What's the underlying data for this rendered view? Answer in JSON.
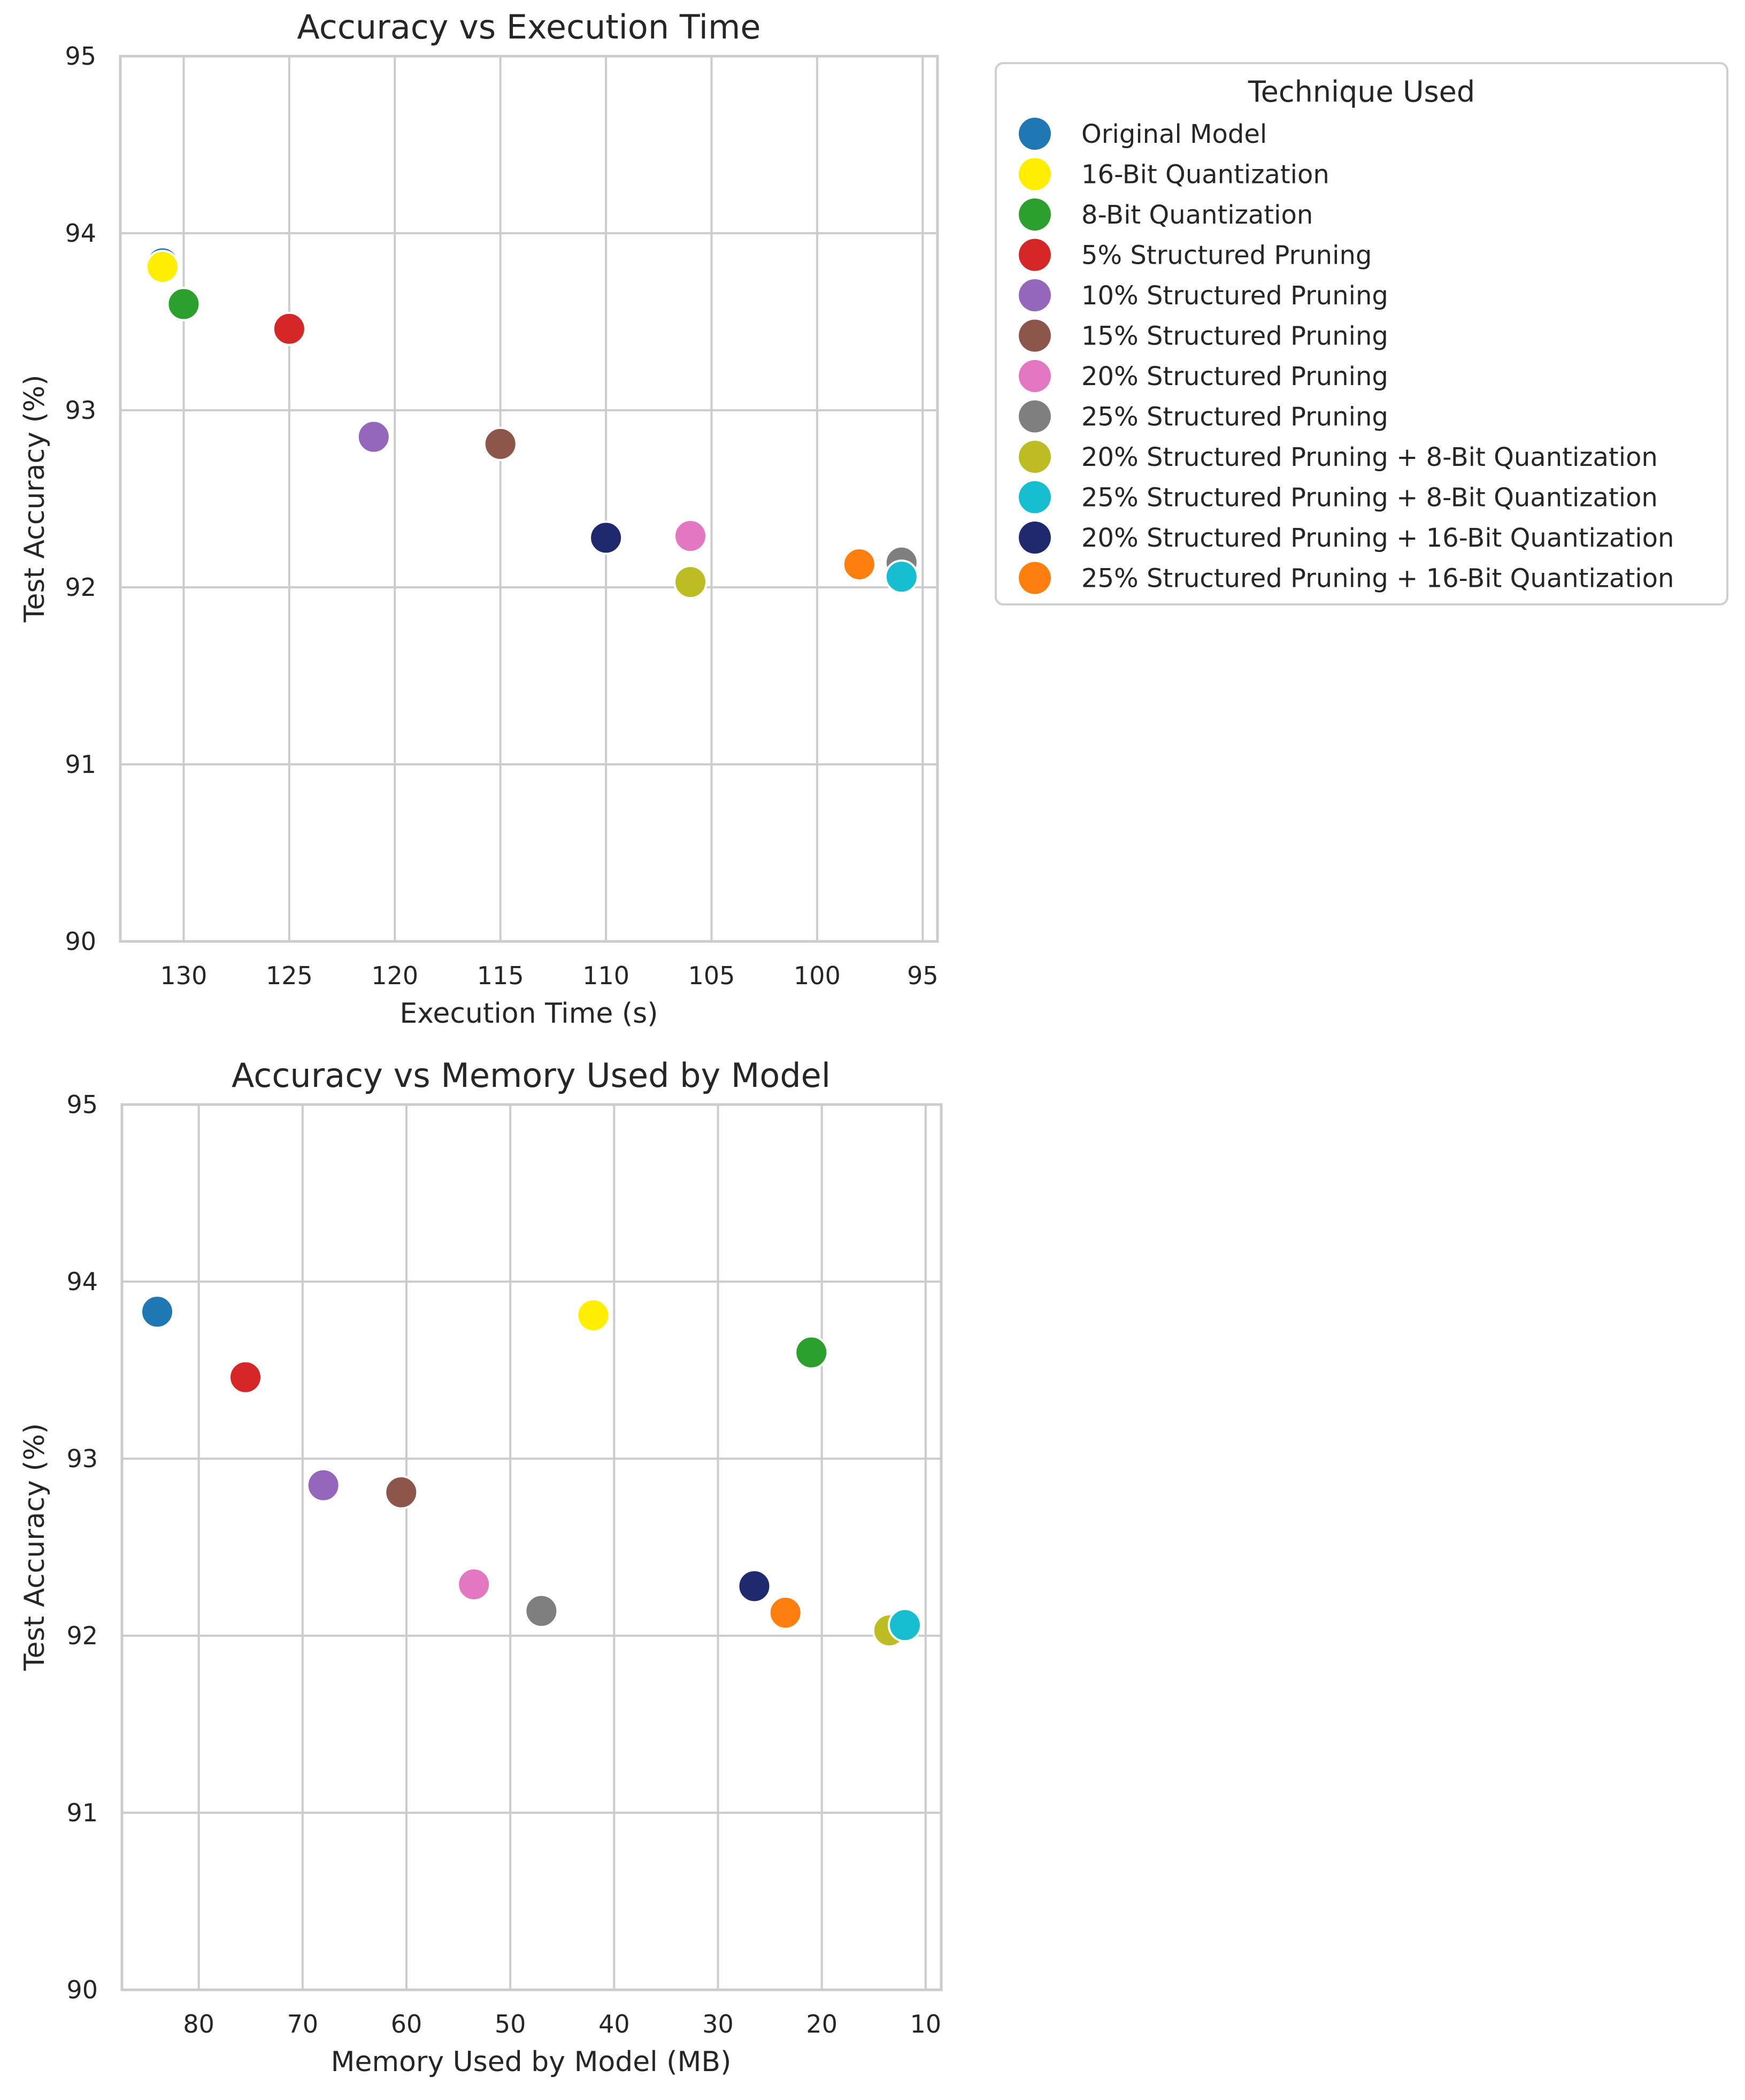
{
  "legend": {
    "title": "Technique Used",
    "entries": [
      {
        "label": "Original Model",
        "color": "#1f77b4"
      },
      {
        "label": "16-Bit Quantization",
        "color": "#ffee00"
      },
      {
        "label": "8-Bit Quantization",
        "color": "#2ca02c"
      },
      {
        "label": "5% Structured Pruning",
        "color": "#d62728"
      },
      {
        "label": "10% Structured Pruning",
        "color": "#9467bd"
      },
      {
        "label": "15% Structured Pruning",
        "color": "#8c564b"
      },
      {
        "label": "20% Structured Pruning",
        "color": "#e377c2"
      },
      {
        "label": "25% Structured Pruning",
        "color": "#7f7f7f"
      },
      {
        "label": "20% Structured Pruning + 8-Bit Quantization",
        "color": "#bcbd22"
      },
      {
        "label": "25% Structured Pruning + 8-Bit Quantization",
        "color": "#17becf"
      },
      {
        "label": "20% Structured Pruning + 16-Bit Quantization",
        "color": "#1f2a6e"
      },
      {
        "label": "25% Structured Pruning + 16-Bit Quantization",
        "color": "#ff7f0e"
      }
    ]
  },
  "chart_data": [
    {
      "type": "scatter",
      "title": "Accuracy vs Execution Time",
      "xlabel": "Execution Time (s)",
      "ylabel": "Test Accuracy (%)",
      "x_inverted": true,
      "xlim": [
        133,
        94.3
      ],
      "ylim": [
        90,
        95
      ],
      "xticks": [
        130,
        125,
        120,
        115,
        110,
        105,
        100,
        95
      ],
      "yticks": [
        90,
        91,
        92,
        93,
        94,
        95
      ],
      "grid": true,
      "points": [
        {
          "label": "Original Model",
          "x": 131,
          "y": 93.83
        },
        {
          "label": "16-Bit Quantization",
          "x": 131,
          "y": 93.81
        },
        {
          "label": "8-Bit Quantization",
          "x": 130,
          "y": 93.6
        },
        {
          "label": "5% Structured Pruning",
          "x": 125,
          "y": 93.46
        },
        {
          "label": "10% Structured Pruning",
          "x": 121,
          "y": 92.85
        },
        {
          "label": "15% Structured Pruning",
          "x": 115,
          "y": 92.81
        },
        {
          "label": "20% Structured Pruning",
          "x": 106,
          "y": 92.29
        },
        {
          "label": "25% Structured Pruning",
          "x": 96,
          "y": 92.14
        },
        {
          "label": "20% Structured Pruning + 8-Bit Quantization",
          "x": 106,
          "y": 92.03
        },
        {
          "label": "25% Structured Pruning + 8-Bit Quantization",
          "x": 96,
          "y": 92.06
        },
        {
          "label": "20% Structured Pruning + 16-Bit Quantization",
          "x": 110,
          "y": 92.28
        },
        {
          "label": "25% Structured Pruning + 16-Bit Quantization",
          "x": 98,
          "y": 92.13
        }
      ]
    },
    {
      "type": "scatter",
      "title": "Accuracy vs Memory Used by Model",
      "xlabel": "Memory Used by Model (MB)",
      "ylabel": "Test Accuracy (%)",
      "x_inverted": true,
      "xlim": [
        87.4,
        8.5
      ],
      "ylim": [
        90,
        95
      ],
      "xticks": [
        80,
        70,
        60,
        50,
        40,
        30,
        20,
        10
      ],
      "yticks": [
        90,
        91,
        92,
        93,
        94,
        95
      ],
      "grid": true,
      "points": [
        {
          "label": "Original Model",
          "x": 84,
          "y": 93.83
        },
        {
          "label": "16-Bit Quantization",
          "x": 42,
          "y": 93.81
        },
        {
          "label": "8-Bit Quantization",
          "x": 21,
          "y": 93.6
        },
        {
          "label": "5% Structured Pruning",
          "x": 75.5,
          "y": 93.46
        },
        {
          "label": "10% Structured Pruning",
          "x": 68,
          "y": 92.85
        },
        {
          "label": "15% Structured Pruning",
          "x": 60.5,
          "y": 92.81
        },
        {
          "label": "20% Structured Pruning",
          "x": 53.5,
          "y": 92.29
        },
        {
          "label": "25% Structured Pruning",
          "x": 47,
          "y": 92.14
        },
        {
          "label": "20% Structured Pruning + 8-Bit Quantization",
          "x": 13.5,
          "y": 92.03
        },
        {
          "label": "25% Structured Pruning + 8-Bit Quantization",
          "x": 12,
          "y": 92.06
        },
        {
          "label": "20% Structured Pruning + 16-Bit Quantization",
          "x": 26.5,
          "y": 92.28
        },
        {
          "label": "25% Structured Pruning + 16-Bit Quantization",
          "x": 23.5,
          "y": 92.13
        }
      ]
    }
  ]
}
